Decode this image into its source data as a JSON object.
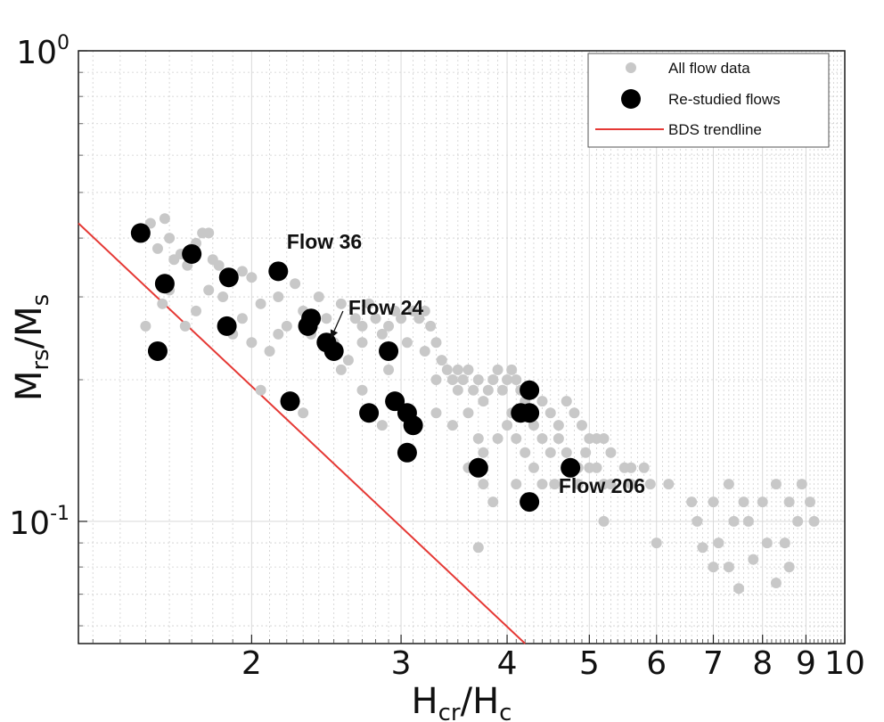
{
  "chart_data": {
    "type": "scatter",
    "xlabel": {
      "main": "H",
      "sub": "cr",
      "sep": "/",
      "main2": "H",
      "sub2": "c"
    },
    "ylabel": {
      "main": "M",
      "sub": "rs",
      "sep": "/",
      "main2": "M",
      "sub2": "s"
    },
    "x_scale": "log",
    "y_scale": "log",
    "xlim": [
      1.25,
      10
    ],
    "ylim": [
      0.055,
      1
    ],
    "x_ticks": [
      {
        "value": 2,
        "label": "2"
      },
      {
        "value": 3,
        "label": "3"
      },
      {
        "value": 4,
        "label": "4"
      },
      {
        "value": 5,
        "label": "5"
      },
      {
        "value": 6,
        "label": "6"
      },
      {
        "value": 7,
        "label": "7"
      },
      {
        "value": 8,
        "label": "8"
      },
      {
        "value": 9,
        "label": "9"
      },
      {
        "value": 10,
        "label": "10"
      }
    ],
    "y_ticks": [
      {
        "value": 1,
        "base": "10",
        "exp": "0"
      },
      {
        "value": 0.1,
        "base": "10",
        "exp": "-1"
      }
    ],
    "grid": true,
    "legend_position": "top-right",
    "series": [
      {
        "name": "All flow data",
        "marker": "small-circle",
        "color": "#c8c8c8",
        "points": [
          [
            1.52,
            0.43
          ],
          [
            1.55,
            0.38
          ],
          [
            1.58,
            0.44
          ],
          [
            1.6,
            0.4
          ],
          [
            1.62,
            0.36
          ],
          [
            1.65,
            0.37
          ],
          [
            1.68,
            0.35
          ],
          [
            1.7,
            0.38
          ],
          [
            1.72,
            0.39
          ],
          [
            1.75,
            0.41
          ],
          [
            1.78,
            0.41
          ],
          [
            1.8,
            0.36
          ],
          [
            1.83,
            0.35
          ],
          [
            1.88,
            0.33
          ],
          [
            1.5,
            0.26
          ],
          [
            1.57,
            0.29
          ],
          [
            1.6,
            0.31
          ],
          [
            1.67,
            0.26
          ],
          [
            1.72,
            0.28
          ],
          [
            1.78,
            0.31
          ],
          [
            1.85,
            0.3
          ],
          [
            1.95,
            0.34
          ],
          [
            2.0,
            0.33
          ],
          [
            1.9,
            0.25
          ],
          [
            1.95,
            0.27
          ],
          [
            2.05,
            0.29
          ],
          [
            2.15,
            0.3
          ],
          [
            2.25,
            0.32
          ],
          [
            2.3,
            0.28
          ],
          [
            2.4,
            0.3
          ],
          [
            2.45,
            0.27
          ],
          [
            2.55,
            0.29
          ],
          [
            2.65,
            0.27
          ],
          [
            2.7,
            0.26
          ],
          [
            2.75,
            0.29
          ],
          [
            2.8,
            0.27
          ],
          [
            2.85,
            0.25
          ],
          [
            2.9,
            0.26
          ],
          [
            2.95,
            0.28
          ],
          [
            3.0,
            0.27
          ],
          [
            3.1,
            0.28
          ],
          [
            3.15,
            0.27
          ],
          [
            3.2,
            0.28
          ],
          [
            3.25,
            0.26
          ],
          [
            2.0,
            0.24
          ],
          [
            2.1,
            0.23
          ],
          [
            2.15,
            0.25
          ],
          [
            2.2,
            0.26
          ],
          [
            2.35,
            0.25
          ],
          [
            2.5,
            0.24
          ],
          [
            2.6,
            0.22
          ],
          [
            2.7,
            0.24
          ],
          [
            2.9,
            0.23
          ],
          [
            3.05,
            0.24
          ],
          [
            3.2,
            0.23
          ],
          [
            3.3,
            0.24
          ],
          [
            3.35,
            0.22
          ],
          [
            3.4,
            0.21
          ],
          [
            3.45,
            0.2
          ],
          [
            3.5,
            0.21
          ],
          [
            2.05,
            0.19
          ],
          [
            2.3,
            0.17
          ],
          [
            2.55,
            0.21
          ],
          [
            2.7,
            0.19
          ],
          [
            2.9,
            0.21
          ],
          [
            3.3,
            0.2
          ],
          [
            3.5,
            0.19
          ],
          [
            3.55,
            0.2
          ],
          [
            3.6,
            0.21
          ],
          [
            3.65,
            0.19
          ],
          [
            3.7,
            0.2
          ],
          [
            3.75,
            0.18
          ],
          [
            3.8,
            0.19
          ],
          [
            3.85,
            0.2
          ],
          [
            3.9,
            0.21
          ],
          [
            3.95,
            0.19
          ],
          [
            4.0,
            0.2
          ],
          [
            4.05,
            0.21
          ],
          [
            4.1,
            0.2
          ],
          [
            4.15,
            0.19
          ],
          [
            4.2,
            0.18
          ],
          [
            4.25,
            0.19
          ],
          [
            4.3,
            0.17
          ],
          [
            4.4,
            0.18
          ],
          [
            4.5,
            0.17
          ],
          [
            4.6,
            0.16
          ],
          [
            4.7,
            0.18
          ],
          [
            4.8,
            0.17
          ],
          [
            4.9,
            0.16
          ],
          [
            5.0,
            0.15
          ],
          [
            5.1,
            0.15
          ],
          [
            5.2,
            0.15
          ],
          [
            5.3,
            0.14
          ],
          [
            5.5,
            0.13
          ],
          [
            5.6,
            0.13
          ],
          [
            5.8,
            0.13
          ],
          [
            2.85,
            0.16
          ],
          [
            3.3,
            0.17
          ],
          [
            3.45,
            0.16
          ],
          [
            3.6,
            0.17
          ],
          [
            3.7,
            0.15
          ],
          [
            3.75,
            0.14
          ],
          [
            3.9,
            0.15
          ],
          [
            4.0,
            0.16
          ],
          [
            4.05,
            0.17
          ],
          [
            4.1,
            0.15
          ],
          [
            4.2,
            0.14
          ],
          [
            4.3,
            0.16
          ],
          [
            4.4,
            0.15
          ],
          [
            4.5,
            0.14
          ],
          [
            4.6,
            0.15
          ],
          [
            4.7,
            0.14
          ],
          [
            4.85,
            0.13
          ],
          [
            4.95,
            0.14
          ],
          [
            5.1,
            0.13
          ],
          [
            5.2,
            0.12
          ],
          [
            3.6,
            0.13
          ],
          [
            3.75,
            0.12
          ],
          [
            3.85,
            0.11
          ],
          [
            4.1,
            0.12
          ],
          [
            4.3,
            0.13
          ],
          [
            4.4,
            0.12
          ],
          [
            4.55,
            0.12
          ],
          [
            4.75,
            0.13
          ],
          [
            4.85,
            0.12
          ],
          [
            5.0,
            0.13
          ],
          [
            5.3,
            0.12
          ],
          [
            5.6,
            0.12
          ],
          [
            5.9,
            0.12
          ],
          [
            6.2,
            0.12
          ],
          [
            6.6,
            0.11
          ],
          [
            7.0,
            0.11
          ],
          [
            7.3,
            0.12
          ],
          [
            7.6,
            0.11
          ],
          [
            8.0,
            0.11
          ],
          [
            8.3,
            0.12
          ],
          [
            8.6,
            0.11
          ],
          [
            8.9,
            0.12
          ],
          [
            9.1,
            0.11
          ],
          [
            5.2,
            0.1
          ],
          [
            6.0,
            0.09
          ],
          [
            6.7,
            0.1
          ],
          [
            7.1,
            0.09
          ],
          [
            7.4,
            0.1
          ],
          [
            7.7,
            0.1
          ],
          [
            8.1,
            0.09
          ],
          [
            8.5,
            0.09
          ],
          [
            8.8,
            0.1
          ],
          [
            9.2,
            0.1
          ],
          [
            3.7,
            0.088
          ],
          [
            6.8,
            0.088
          ],
          [
            7.0,
            0.08
          ],
          [
            7.3,
            0.08
          ],
          [
            7.8,
            0.083
          ],
          [
            8.6,
            0.08
          ],
          [
            8.3,
            0.074
          ],
          [
            7.5,
            0.072
          ]
        ]
      },
      {
        "name": "Re-studied flows",
        "marker": "large-circle",
        "color": "#000000",
        "points": [
          [
            1.48,
            0.41
          ],
          [
            1.55,
            0.23
          ],
          [
            1.58,
            0.32
          ],
          [
            1.7,
            0.37
          ],
          [
            1.88,
            0.33
          ],
          [
            1.87,
            0.26
          ],
          [
            2.15,
            0.34
          ],
          [
            2.22,
            0.18
          ],
          [
            2.33,
            0.26
          ],
          [
            2.35,
            0.27
          ],
          [
            2.45,
            0.24
          ],
          [
            2.5,
            0.23
          ],
          [
            2.75,
            0.17
          ],
          [
            2.9,
            0.23
          ],
          [
            2.95,
            0.18
          ],
          [
            3.05,
            0.17
          ],
          [
            3.1,
            0.16
          ],
          [
            3.05,
            0.14
          ],
          [
            3.7,
            0.13
          ],
          [
            4.15,
            0.17
          ],
          [
            4.25,
            0.19
          ],
          [
            4.25,
            0.17
          ],
          [
            4.25,
            0.11
          ],
          [
            4.75,
            0.13
          ]
        ]
      },
      {
        "name": "BDS trendline",
        "marker": "line",
        "color": "#e53935",
        "points": [
          [
            1.25,
            0.43
          ],
          [
            4.2,
            0.055
          ]
        ]
      }
    ],
    "annotations": [
      {
        "text": "Flow 36",
        "x": 2.2,
        "y": 0.38
      },
      {
        "text": "Flow 24",
        "x": 2.6,
        "y": 0.275,
        "arrow_to": [
          2.48,
          0.245
        ]
      },
      {
        "text": "Flow 206",
        "x": 4.6,
        "y": 0.115
      }
    ]
  }
}
